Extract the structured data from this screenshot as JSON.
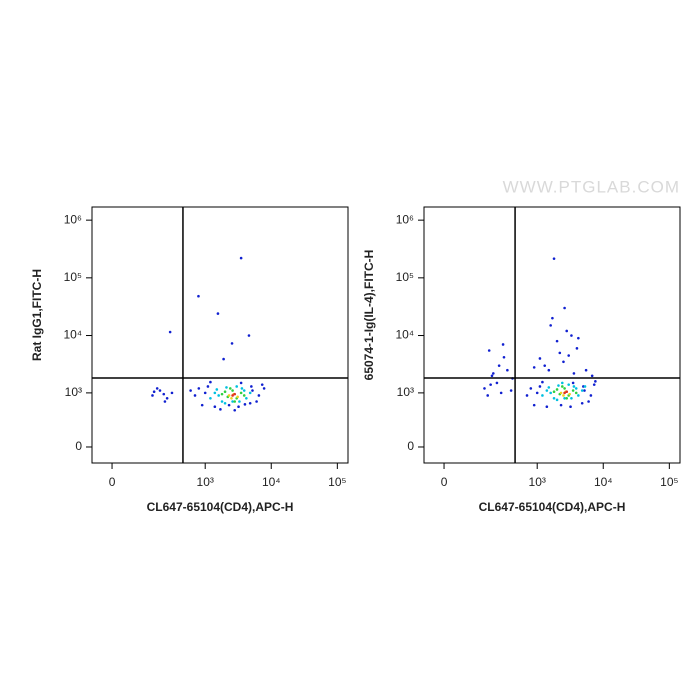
{
  "watermark": "WWW.PTGLAB.COM",
  "chart_data": [
    {
      "type": "scatter",
      "xlabel": "CL647-65104(CD4),APC-H",
      "ylabel": "Rat IgG1,FITC-H",
      "xscale": "biexponential",
      "yscale": "biexponential",
      "xlim": [
        -59,
        145000
      ],
      "ylim": [
        -160,
        1690000
      ],
      "xticks": [
        0,
        {
          "value": 1000,
          "label": "10³"
        },
        {
          "value": 10000,
          "label": "10⁴"
        },
        {
          "value": 100000,
          "label": "10⁵"
        }
      ],
      "yticks": [
        0,
        {
          "value": 1000,
          "label": "10³"
        },
        {
          "value": 10000,
          "label": "10⁴"
        },
        {
          "value": 100000,
          "label": "10⁵"
        },
        {
          "value": 1000000,
          "label": "10⁶"
        }
      ],
      "gates": {
        "x": 458,
        "y": 1830
      },
      "series": [
        {
          "color": "#1020d0",
          "x": [
            150,
            200,
            260,
            310,
            180,
            240,
            700,
            900,
            1100,
            1400,
            5200,
            6500,
            7300,
            800,
            1000,
            4800,
            6000,
            1200,
            3200,
            2300,
            3500,
            5000,
            290,
            1560,
            790,
            3500,
            4600,
            2550,
            1900,
            160,
            230,
            600,
            1700,
            2800,
            4000,
            7800
          ],
          "y": [
            900,
            1100,
            800,
            1000,
            1200,
            700,
            900,
            600,
            1300,
            560,
            1100,
            900,
            1400,
            1200,
            1000,
            650,
            700,
            1550,
            560,
            600,
            1500,
            1300,
            11500,
            24000,
            48000,
            220000,
            10000,
            7300,
            3900,
            1050,
            950,
            1100,
            500,
            480,
            620,
            1200
          ]
        },
        {
          "color": "#00c0e0",
          "x": [
            1200,
            1500,
            1800,
            2100,
            2600,
            3000,
            3600,
            4200,
            4800,
            1400,
            2000,
            3300,
            1600,
            3900
          ],
          "y": [
            800,
            1150,
            700,
            1250,
            700,
            1300,
            1200,
            800,
            1000,
            1000,
            650,
            700,
            900,
            1100
          ]
        },
        {
          "color": "#30d040",
          "x": [
            1800,
            2200,
            2600,
            3000,
            3500,
            2000,
            2800,
            3900,
            2400
          ],
          "y": [
            950,
            850,
            1100,
            800,
            1000,
            1050,
            700,
            900,
            1200
          ]
        },
        {
          "color": "#f0d020",
          "x": [
            2300,
            2700,
            3100,
            2500
          ],
          "y": [
            900,
            950,
            850,
            800
          ]
        },
        {
          "color": "#e03020",
          "x": [
            2600,
            2800
          ],
          "y": [
            900,
            950
          ]
        }
      ]
    },
    {
      "type": "scatter",
      "xlabel": "CL647-65104(CD4),APC-H",
      "ylabel": "65074-1-Ig(IL-4),FITC-H",
      "xscale": "biexponential",
      "yscale": "biexponential",
      "xlim": [
        -59,
        145000
      ],
      "ylim": [
        -160,
        1690000
      ],
      "xticks": [
        0,
        {
          "value": 1000,
          "label": "10³"
        },
        {
          "value": 10000,
          "label": "10⁴"
        },
        {
          "value": 100000,
          "label": "10⁵"
        }
      ],
      "yticks": [
        0,
        {
          "value": 1000,
          "label": "10³"
        },
        {
          "value": 10000,
          "label": "10⁴"
        },
        {
          "value": 100000,
          "label": "10⁵"
        },
        {
          "value": 1000000,
          "label": "10⁶"
        }
      ],
      "gates": {
        "x": 460,
        "y": 1830
      },
      "series": [
        {
          "color": "#1020d0",
          "x": [
            150,
            200,
            260,
            310,
            180,
            240,
            350,
            420,
            170,
            280,
            700,
            900,
            1100,
            1400,
            5200,
            6500,
            7300,
            800,
            1000,
            4800,
            6000,
            1200,
            3200,
            2300,
            3500,
            5000,
            1800,
            1500,
            2500,
            3000,
            4000,
            2000,
            2800,
            1300,
            3600,
            900,
            5500,
            2200,
            1600,
            4200,
            300,
            210,
            190,
            400,
            1700,
            2600,
            3300,
            1100,
            6800,
            7600
          ],
          "y": [
            1200,
            2000,
            3000,
            4200,
            5500,
            1500,
            2500,
            1800,
            900,
            1000,
            900,
            600,
            1300,
            560,
            1100,
            900,
            1400,
            1200,
            1000,
            650,
            700,
            1550,
            560,
            600,
            1500,
            1300,
            215000,
            2500,
            3500,
            4500,
            6000,
            8000,
            12000,
            3000,
            2200,
            2800,
            2500,
            5000,
            15000,
            9000,
            7000,
            2200,
            1400,
            1100,
            20000,
            30000,
            10000,
            4000,
            2000,
            1600
          ]
        },
        {
          "color": "#00c0e0",
          "x": [
            1200,
            1500,
            1800,
            2100,
            2600,
            3000,
            3600,
            4200,
            4800,
            1400,
            2000,
            3300,
            1600,
            3900,
            2400,
            5300
          ],
          "y": [
            900,
            1250,
            800,
            1350,
            800,
            1400,
            1300,
            900,
            1100,
            1100,
            750,
            800,
            1000,
            1200,
            1500,
            1300
          ]
        },
        {
          "color": "#30d040",
          "x": [
            1800,
            2200,
            2600,
            3000,
            3500,
            2000,
            2800,
            3900,
            2400
          ],
          "y": [
            1050,
            950,
            1200,
            900,
            1100,
            1150,
            800,
            1000,
            1300
          ]
        },
        {
          "color": "#f0d020",
          "x": [
            2300,
            2700,
            3100,
            2500
          ],
          "y": [
            1000,
            1050,
            950,
            900
          ]
        },
        {
          "color": "#e03020",
          "x": [
            2600,
            2800
          ],
          "y": [
            1000,
            1050
          ]
        }
      ]
    }
  ]
}
